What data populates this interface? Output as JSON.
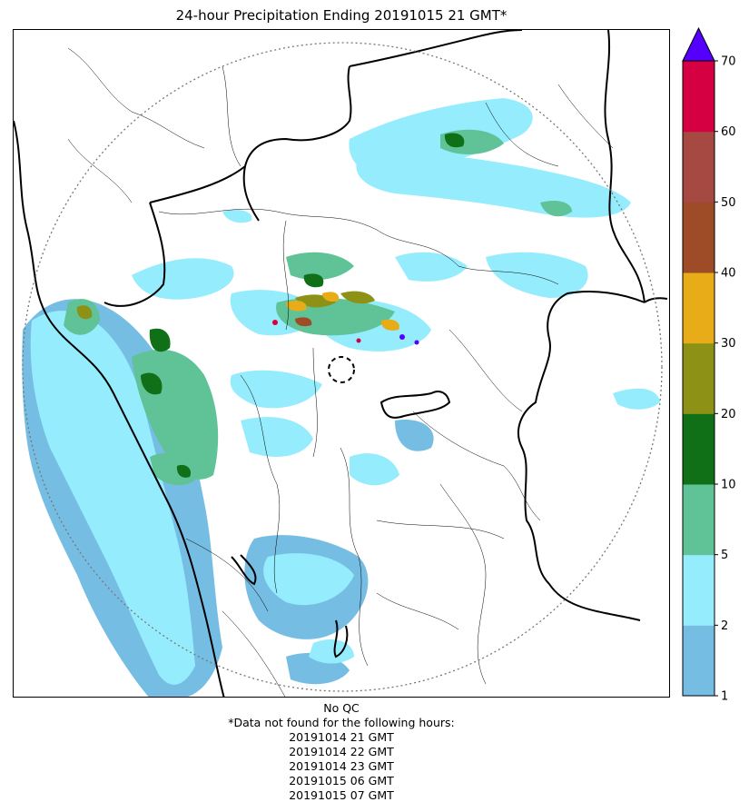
{
  "title": "24-hour Precipitation Ending 20191015 21 GMT*",
  "colorbar": {
    "ticks": [
      "1",
      "2",
      "5",
      "10",
      "20",
      "30",
      "40",
      "50",
      "60",
      "70"
    ],
    "colors": [
      "#76bde3",
      "#95ecfc",
      "#5fc397",
      "#0f7017",
      "#8d9216",
      "#e7ac18",
      "#9d4c27",
      "#a54942",
      "#d50041"
    ],
    "extend_color": "#5500ff"
  },
  "footer": {
    "qc": "No QC",
    "missing_header": "*Data not found for the following hours:",
    "missing_hours": [
      "20191014 21 GMT",
      "20191014 22 GMT",
      "20191014 23 GMT",
      "20191015 06 GMT",
      "20191015 07 GMT"
    ]
  }
}
